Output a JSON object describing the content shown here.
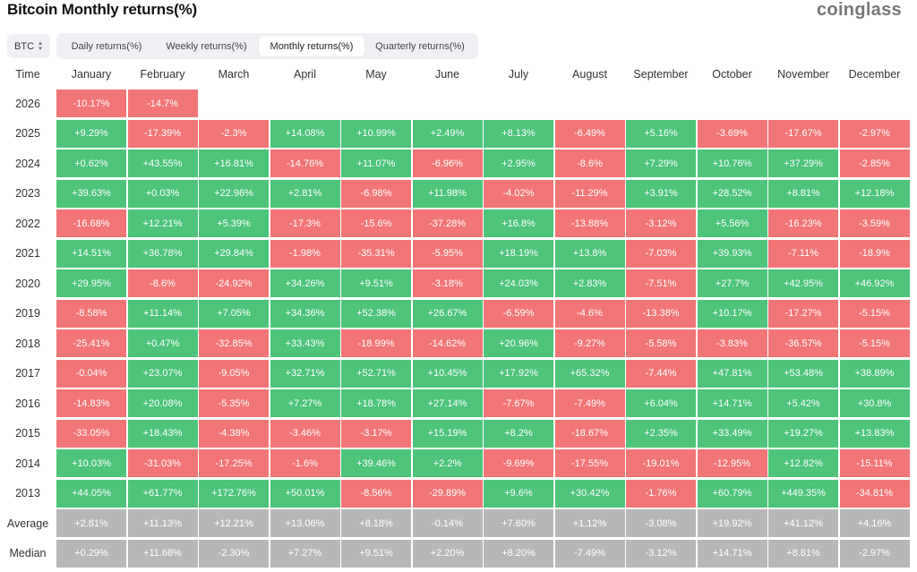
{
  "header": {
    "title": "Bitcoin Monthly returns(%)",
    "logo": "coinglass",
    "coin_select": {
      "value": "BTC",
      "icon": "updown-chevron-icon"
    },
    "tabs": [
      {
        "label": "Daily returns(%)",
        "active": false
      },
      {
        "label": "Weekly returns(%)",
        "active": false
      },
      {
        "label": "Monthly returns(%)",
        "active": true
      },
      {
        "label": "Quarterly returns(%)",
        "active": false
      }
    ]
  },
  "colors": {
    "positive": "#4dc47a",
    "negative": "#f27575",
    "summary": "#b7b7b7"
  },
  "table": {
    "time_header": "Time",
    "months": [
      "January",
      "February",
      "March",
      "April",
      "May",
      "June",
      "July",
      "August",
      "September",
      "October",
      "November",
      "December"
    ],
    "rows": [
      {
        "year": "2026",
        "values": [
          "-10.17%",
          "-14.7%"
        ]
      },
      {
        "year": "2025",
        "values": [
          "+9.29%",
          "-17.39%",
          "-2.3%",
          "+14.08%",
          "+10.99%",
          "+2.49%",
          "+8.13%",
          "-6.49%",
          "+5.16%",
          "-3.69%",
          "-17.67%",
          "-2.97%"
        ]
      },
      {
        "year": "2024",
        "values": [
          "+0.62%",
          "+43.55%",
          "+16.81%",
          "-14.76%",
          "+11.07%",
          "-6.96%",
          "+2.95%",
          "-8.6%",
          "+7.29%",
          "+10.76%",
          "+37.29%",
          "-2.85%"
        ]
      },
      {
        "year": "2023",
        "values": [
          "+39.63%",
          "+0.03%",
          "+22.96%",
          "+2.81%",
          "-6.98%",
          "+11.98%",
          "-4.02%",
          "-11.29%",
          "+3.91%",
          "+28.52%",
          "+8.81%",
          "+12.18%"
        ]
      },
      {
        "year": "2022",
        "values": [
          "-16.68%",
          "+12.21%",
          "+5.39%",
          "-17.3%",
          "-15.6%",
          "-37.28%",
          "+16.8%",
          "-13.88%",
          "-3.12%",
          "+5.56%",
          "-16.23%",
          "-3.59%"
        ]
      },
      {
        "year": "2021",
        "values": [
          "+14.51%",
          "+36.78%",
          "+29.84%",
          "-1.98%",
          "-35.31%",
          "-5.95%",
          "+18.19%",
          "+13.8%",
          "-7.03%",
          "+39.93%",
          "-7.11%",
          "-18.9%"
        ]
      },
      {
        "year": "2020",
        "values": [
          "+29.95%",
          "-8.6%",
          "-24.92%",
          "+34.26%",
          "+9.51%",
          "-3.18%",
          "+24.03%",
          "+2.83%",
          "-7.51%",
          "+27.7%",
          "+42.95%",
          "+46.92%"
        ]
      },
      {
        "year": "2019",
        "values": [
          "-8.58%",
          "+11.14%",
          "+7.05%",
          "+34.36%",
          "+52.38%",
          "+26.67%",
          "-6.59%",
          "-4.6%",
          "-13.38%",
          "+10.17%",
          "-17.27%",
          "-5.15%"
        ]
      },
      {
        "year": "2018",
        "values": [
          "-25.41%",
          "+0.47%",
          "-32.85%",
          "+33.43%",
          "-18.99%",
          "-14.62%",
          "+20.96%",
          "-9.27%",
          "-5.58%",
          "-3.83%",
          "-36.57%",
          "-5.15%"
        ]
      },
      {
        "year": "2017",
        "values": [
          "-0.04%",
          "+23.07%",
          "-9.05%",
          "+32.71%",
          "+52.71%",
          "+10.45%",
          "+17.92%",
          "+65.32%",
          "-7.44%",
          "+47.81%",
          "+53.48%",
          "+38.89%"
        ]
      },
      {
        "year": "2016",
        "values": [
          "-14.83%",
          "+20.08%",
          "-5.35%",
          "+7.27%",
          "+18.78%",
          "+27.14%",
          "-7.67%",
          "-7.49%",
          "+6.04%",
          "+14.71%",
          "+5.42%",
          "+30.8%"
        ]
      },
      {
        "year": "2015",
        "values": [
          "-33.05%",
          "+18.43%",
          "-4.38%",
          "-3.46%",
          "-3.17%",
          "+15.19%",
          "+8.2%",
          "-18.67%",
          "+2.35%",
          "+33.49%",
          "+19.27%",
          "+13.83%"
        ]
      },
      {
        "year": "2014",
        "values": [
          "+10.03%",
          "-31.03%",
          "-17.25%",
          "-1.6%",
          "+39.46%",
          "+2.2%",
          "-9.69%",
          "-17.55%",
          "-19.01%",
          "-12.95%",
          "+12.82%",
          "-15.11%"
        ]
      },
      {
        "year": "2013",
        "values": [
          "+44.05%",
          "+61.77%",
          "+172.76%",
          "+50.01%",
          "-8.56%",
          "-29.89%",
          "+9.6%",
          "+30.42%",
          "-1.76%",
          "+60.79%",
          "+449.35%",
          "-34.81%"
        ]
      }
    ],
    "summary": [
      {
        "label": "Average",
        "values": [
          "+2.81%",
          "+11.13%",
          "+12.21%",
          "+13.06%",
          "+8.18%",
          "-0.14%",
          "+7.60%",
          "+1.12%",
          "-3.08%",
          "+19.92%",
          "+41.12%",
          "+4.16%"
        ]
      },
      {
        "label": "Median",
        "values": [
          "+0.29%",
          "+11.68%",
          "-2.30%",
          "+7.27%",
          "+9.51%",
          "+2.20%",
          "+8.20%",
          "-7.49%",
          "-3.12%",
          "+14.71%",
          "+8.81%",
          "-2.97%"
        ]
      }
    ]
  }
}
